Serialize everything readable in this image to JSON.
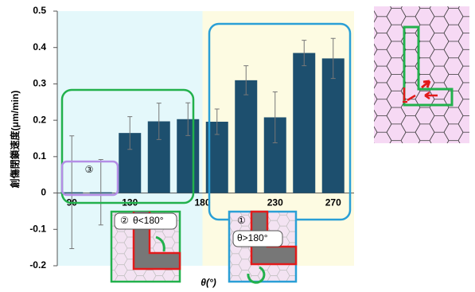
{
  "chart_data": {
    "type": "bar",
    "y_label": "創傷閉鎖速度(μm/min)",
    "x_label": "θ(°)",
    "x": [
      90,
      110,
      130,
      150,
      170,
      190,
      210,
      230,
      250,
      270
    ],
    "values": [
      0.002,
      0.002,
      0.165,
      0.197,
      0.203,
      0.196,
      0.31,
      0.208,
      0.385,
      0.37
    ],
    "errors": [
      0.155,
      0.09,
      0.045,
      0.05,
      0.045,
      0.035,
      0.04,
      0.07,
      0.035,
      0.055
    ],
    "color": "#1d4f6e",
    "xlim": [
      80,
      280
    ],
    "xticks": [
      90,
      130,
      180,
      230,
      270
    ],
    "ylim": [
      -0.2,
      0.5
    ],
    "yticks": [
      0.5,
      0.4,
      0.3,
      0.2,
      0.1,
      0,
      -0.1,
      -0.2
    ],
    "annotations": [
      "③",
      "②",
      "θ<180°",
      "①",
      "θ>180°"
    ]
  }
}
